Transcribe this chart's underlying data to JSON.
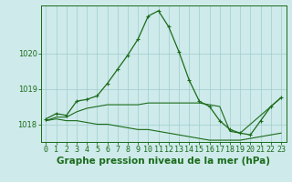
{
  "title": "Graphe pression niveau de la mer (hPa)",
  "x_labels": [
    "0",
    "1",
    "2",
    "3",
    "4",
    "5",
    "6",
    "7",
    "8",
    "9",
    "10",
    "11",
    "12",
    "13",
    "14",
    "15",
    "16",
    "17",
    "18",
    "19",
    "20",
    "21",
    "22",
    "23"
  ],
  "x_values": [
    0,
    1,
    2,
    3,
    4,
    5,
    6,
    7,
    8,
    9,
    10,
    11,
    12,
    13,
    14,
    15,
    16,
    17,
    18,
    19,
    20,
    21,
    22,
    23
  ],
  "line_main": [
    1018.15,
    1018.3,
    1018.25,
    1018.65,
    1018.7,
    1018.8,
    1019.15,
    1019.55,
    1019.95,
    1020.4,
    1021.05,
    1021.2,
    1020.75,
    1020.05,
    1019.25,
    1018.65,
    1018.5,
    1018.1,
    1017.85,
    1017.75,
    1017.7,
    1018.1,
    1018.5,
    1018.75
  ],
  "line_low": [
    1018.1,
    1018.15,
    1018.1,
    1018.1,
    1018.05,
    1018.0,
    1018.0,
    1017.95,
    1017.9,
    1017.85,
    1017.85,
    1017.8,
    1017.75,
    1017.7,
    1017.65,
    1017.6,
    1017.55,
    1017.55,
    1017.55,
    1017.55,
    1017.6,
    1017.65,
    1017.7,
    1017.75
  ],
  "line_mid": [
    1018.1,
    1018.2,
    1018.2,
    1018.35,
    1018.45,
    1018.5,
    1018.55,
    1018.55,
    1018.55,
    1018.55,
    1018.6,
    1018.6,
    1018.6,
    1018.6,
    1018.6,
    1018.6,
    1018.55,
    1018.5,
    1017.8,
    1017.75,
    1018.0,
    1018.25,
    1018.5,
    1018.75
  ],
  "ylim_low": 1017.5,
  "ylim_high": 1021.35,
  "yticks": [
    1018,
    1019,
    1020
  ],
  "line_color": "#1a6b1a",
  "bg_color": "#ceeaea",
  "grid_color": "#a0cccc",
  "title_fontsize": 7.5,
  "tick_fontsize": 6.0
}
